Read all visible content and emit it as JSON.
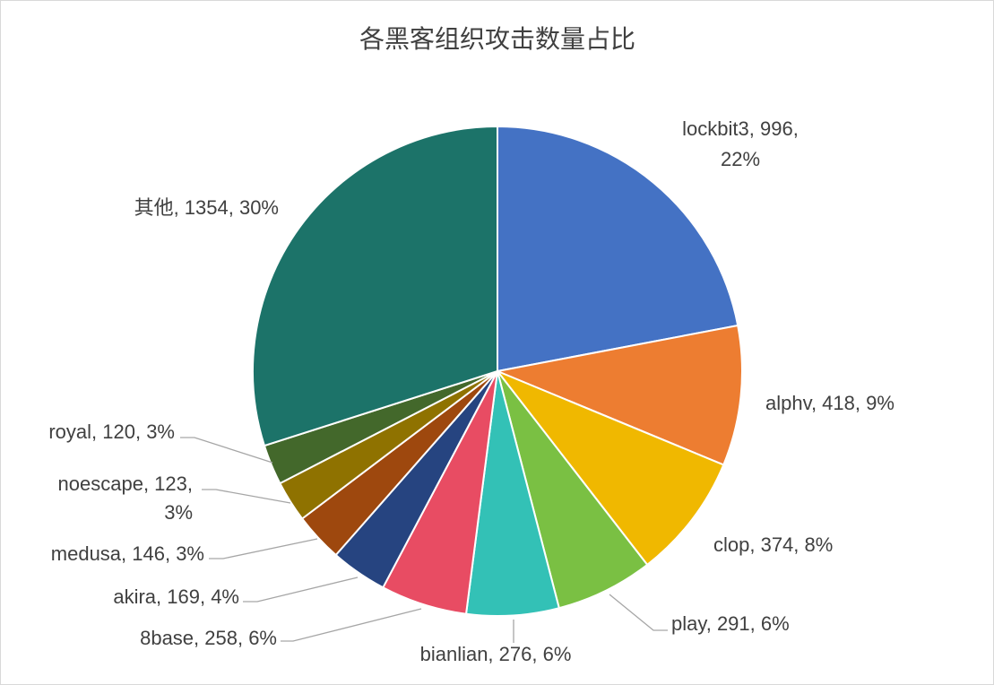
{
  "chart_data": {
    "type": "pie",
    "title": "各黑客组织攻击数量占比",
    "legend": "none",
    "slices": [
      {
        "name": "lockbit3",
        "value": 996,
        "percent": "22%",
        "color": "#4472C4",
        "label_lines": [
          "lockbit3, 996,",
          "22%"
        ]
      },
      {
        "name": "alphv",
        "value": 418,
        "percent": "9%",
        "color": "#ED7D31",
        "label_lines": [
          "alphv, 418, 9%"
        ]
      },
      {
        "name": "clop",
        "value": 374,
        "percent": "8%",
        "color": "#F0B800",
        "label_lines": [
          "clop, 374, 8%"
        ]
      },
      {
        "name": "play",
        "value": 291,
        "percent": "6%",
        "color": "#7AC043",
        "label_lines": [
          "play, 291, 6%"
        ]
      },
      {
        "name": "bianlian",
        "value": 276,
        "percent": "6%",
        "color": "#33C1B6",
        "label_lines": [
          "bianlian, 276, 6%"
        ]
      },
      {
        "name": "8base",
        "value": 258,
        "percent": "6%",
        "color": "#E84C63",
        "label_lines": [
          "8base, 258, 6%"
        ]
      },
      {
        "name": "akira",
        "value": 169,
        "percent": "4%",
        "color": "#264480",
        "label_lines": [
          "akira, 169, 4%"
        ]
      },
      {
        "name": "medusa",
        "value": 146,
        "percent": "3%",
        "color": "#9E480E",
        "label_lines": [
          "medusa, 146, 3%"
        ]
      },
      {
        "name": "noescape",
        "value": 123,
        "percent": "3%",
        "color": "#8F7200",
        "label_lines": [
          "noescape, 123,",
          "3%"
        ]
      },
      {
        "name": "royal",
        "value": 120,
        "percent": "3%",
        "color": "#43682B",
        "label_lines": [
          "royal, 120, 3%"
        ]
      },
      {
        "name": "其他",
        "value": 1354,
        "percent": "30%",
        "color": "#1C7369",
        "label_lines": [
          "其他, 1354, 30%"
        ]
      }
    ]
  }
}
